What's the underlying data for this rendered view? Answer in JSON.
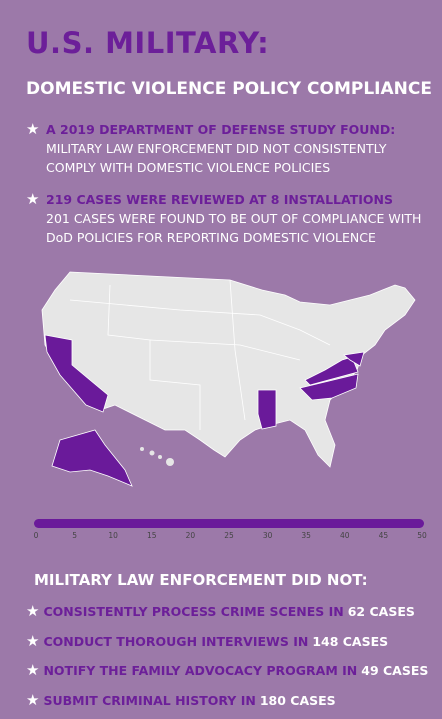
{
  "title": "U.S. MILITARY:",
  "subtitle": "DOMESTIC VIOLENCE POLICY COMPLIANCE",
  "findings": [
    {
      "heading": "A 2019 DEPARTMENT OF DEFENSE STUDY FOUND:",
      "body": "MILITARY LAW ENFORCEMENT DID NOT CONSISTENTLY COMPLY WITH DOMESTIC VIOLENCE POLICIES"
    },
    {
      "heading": "219 CASES WERE REVIEWED AT 8 INSTALLATIONS",
      "body": "201 CASES WERE FOUND TO BE OUT OF COMPLIANCE WITH DoD POLICIES FOR REPORTING DOMESTIC VIOLENCE"
    }
  ],
  "scale": {
    "ticks": [
      0,
      5,
      10,
      15,
      20,
      25,
      30,
      35,
      40,
      45,
      50
    ]
  },
  "list_heading": "MILITARY LAW ENFORCEMENT DID NOT:",
  "list": [
    {
      "text": "CONSISTENTLY PROCESS CRIME SCENES IN",
      "count": "62 CASES"
    },
    {
      "text": "CONDUCT THOROUGH INTERVIEWS IN",
      "count": "148 CASES"
    },
    {
      "text": "NOTIFY THE FAMILY ADVOCACY PROGRAM IN",
      "count": "49 CASES"
    },
    {
      "text": "SUBMIT CRIMINAL HISTORY IN",
      "count": "180 CASES"
    }
  ]
}
